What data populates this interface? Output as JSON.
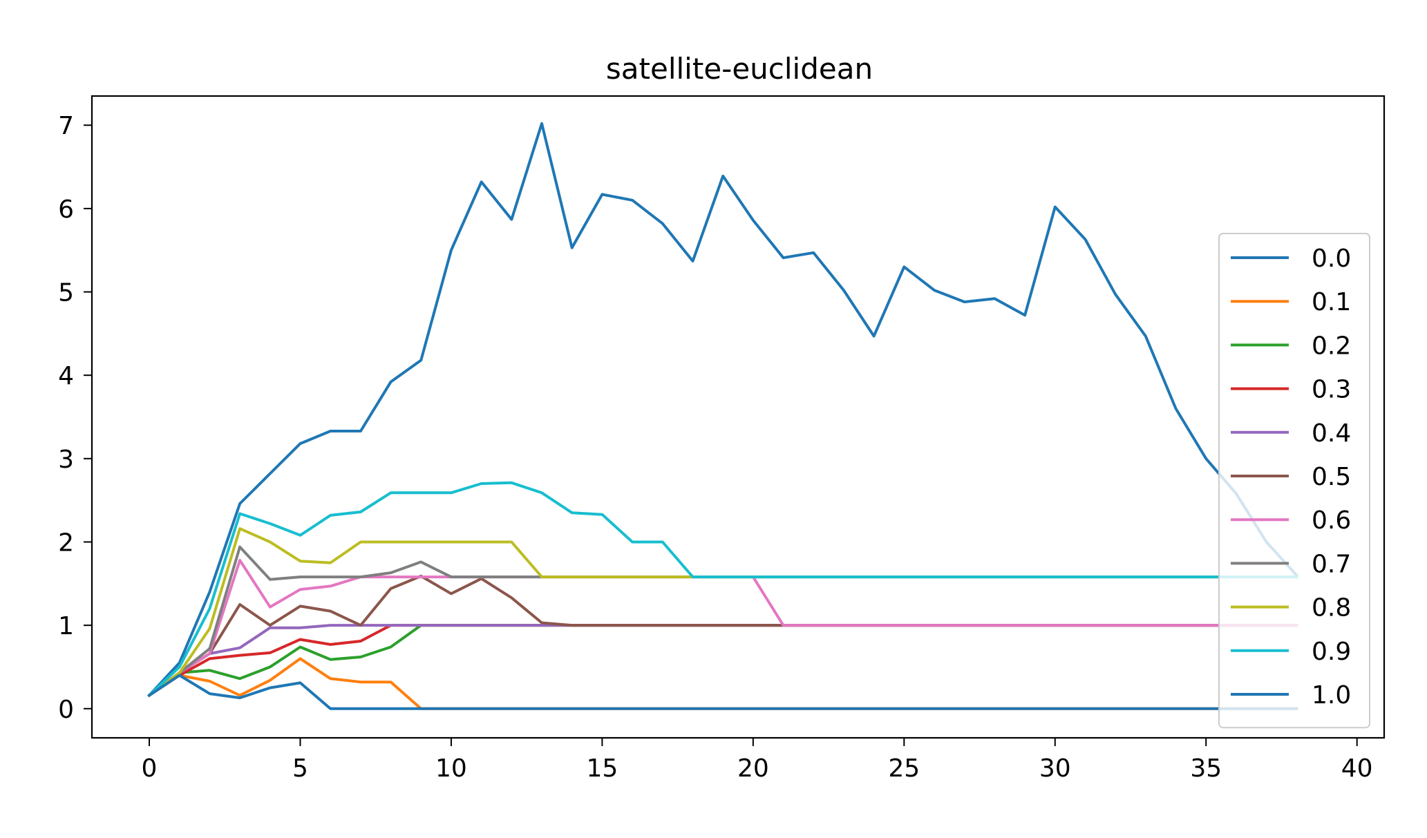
{
  "chart_data": {
    "type": "line",
    "title": "satellite-euclidean",
    "xlabel": "",
    "ylabel": "",
    "xlim": [
      -1.9,
      40.9
    ],
    "ylim": [
      -0.35,
      7.35
    ],
    "xticks": [
      0,
      5,
      10,
      15,
      20,
      25,
      30,
      35,
      40
    ],
    "yticks": [
      0,
      1,
      2,
      3,
      4,
      5,
      6,
      7
    ],
    "grid": false,
    "legend_position": "center-right",
    "x": [
      0,
      1,
      2,
      3,
      4,
      5,
      6,
      7,
      8,
      9,
      10,
      11,
      12,
      13,
      14,
      15,
      16,
      17,
      18,
      19,
      20,
      21,
      22,
      23,
      24,
      25,
      26,
      27,
      28,
      29,
      30,
      31,
      32,
      33,
      34,
      35,
      36,
      37,
      38
    ],
    "series": [
      {
        "name": "0.0",
        "color": "#1f77b4",
        "values": [
          0.16,
          0.55,
          1.4,
          2.46,
          2.82,
          3.18,
          3.33,
          3.33,
          3.92,
          4.18,
          5.5,
          6.32,
          5.87,
          7.02,
          5.53,
          6.17,
          6.1,
          5.82,
          5.37,
          6.39,
          5.86,
          5.41,
          5.47,
          5.02,
          4.47,
          5.3,
          5.02,
          4.88,
          4.92,
          4.72,
          6.02,
          5.63,
          4.97,
          4.47,
          3.6,
          3.0,
          2.58,
          2.0,
          1.6
        ]
      },
      {
        "name": "0.1",
        "color": "#ff7f0e",
        "values": [
          0.16,
          0.4,
          0.33,
          0.16,
          0.34,
          0.6,
          0.36,
          0.32,
          0.32,
          0,
          0,
          0,
          0,
          0,
          0,
          0,
          0,
          0,
          0,
          0,
          0,
          0,
          0,
          0,
          0,
          0,
          0,
          0,
          0,
          0,
          0,
          0,
          0,
          0,
          0,
          0,
          0,
          0,
          0
        ]
      },
      {
        "name": "0.2",
        "color": "#2ca02c",
        "values": [
          0.16,
          0.43,
          0.46,
          0.36,
          0.5,
          0.74,
          0.59,
          0.62,
          0.74,
          1,
          1,
          1,
          1,
          1,
          1,
          1,
          1,
          1,
          1,
          1,
          1,
          1,
          1,
          1,
          1,
          1,
          1,
          1,
          1,
          1,
          1,
          1,
          1,
          1,
          1,
          1,
          1,
          1,
          1
        ]
      },
      {
        "name": "0.3",
        "color": "#d62728",
        "values": [
          0.16,
          0.4,
          0.6,
          0.64,
          0.67,
          0.83,
          0.77,
          0.81,
          1,
          1,
          1,
          1,
          1,
          1,
          1,
          1,
          1,
          1,
          1,
          1,
          1,
          1,
          1,
          1,
          1,
          1,
          1,
          1,
          1,
          1,
          1,
          1,
          1,
          1,
          1,
          1,
          1,
          1,
          1
        ]
      },
      {
        "name": "0.4",
        "color": "#9467bd",
        "values": [
          0.16,
          0.43,
          0.66,
          0.73,
          0.97,
          0.97,
          1,
          1,
          1,
          1,
          1,
          1,
          1,
          1,
          1,
          1,
          1,
          1,
          1,
          1,
          1,
          1,
          1,
          1,
          1,
          1,
          1,
          1,
          1,
          1,
          1,
          1,
          1,
          1,
          1,
          1,
          1,
          1,
          1
        ]
      },
      {
        "name": "0.5",
        "color": "#8c564b",
        "values": [
          0.16,
          0.43,
          0.66,
          1.25,
          1.0,
          1.23,
          1.17,
          1.0,
          1.44,
          1.59,
          1.38,
          1.56,
          1.33,
          1.03,
          1.0,
          1.0,
          1.0,
          1.0,
          1.0,
          1.0,
          1.0,
          1.0,
          1,
          1,
          1,
          1,
          1,
          1,
          1,
          1,
          1,
          1,
          1,
          1,
          1,
          1,
          1,
          1,
          1
        ]
      },
      {
        "name": "0.6",
        "color": "#e377c2",
        "values": [
          0.16,
          0.43,
          0.66,
          1.78,
          1.22,
          1.43,
          1.47,
          1.58,
          1.58,
          1.58,
          1.58,
          1.58,
          1.58,
          1.58,
          1.58,
          1.58,
          1.58,
          1.58,
          1.58,
          1.58,
          1.58,
          1.0,
          1,
          1,
          1,
          1,
          1,
          1,
          1,
          1,
          1,
          1,
          1,
          1,
          1,
          1,
          1,
          1,
          1
        ]
      },
      {
        "name": "0.7",
        "color": "#7f7f7f",
        "values": [
          0.16,
          0.43,
          0.72,
          1.94,
          1.55,
          1.58,
          1.58,
          1.58,
          1.63,
          1.76,
          1.58,
          1.58,
          1.58,
          1.58,
          1.58,
          1.58,
          1.58,
          1.58,
          1.58,
          1.58,
          1.58,
          1.58,
          1.58,
          1.58,
          1.58,
          1.58,
          1.58,
          1.58,
          1.58,
          1.58,
          1.58,
          1.58,
          1.58,
          1.58,
          1.58,
          1.58,
          1.58,
          1.58,
          1.58
        ]
      },
      {
        "name": "0.8",
        "color": "#bcbd22",
        "values": [
          0.16,
          0.43,
          0.96,
          2.16,
          2.0,
          1.77,
          1.75,
          2.0,
          2.0,
          2.0,
          2.0,
          2.0,
          2.0,
          1.58,
          1.58,
          1.58,
          1.58,
          1.58,
          1.58,
          1.58,
          1.58,
          1.58,
          1.58,
          1.58,
          1.58,
          1.58,
          1.58,
          1.58,
          1.58,
          1.58,
          1.58,
          1.58,
          1.58,
          1.58,
          1.58,
          1.58,
          1.58,
          1.58,
          1.58
        ]
      },
      {
        "name": "0.9",
        "color": "#17becf",
        "values": [
          0.16,
          0.5,
          1.2,
          2.34,
          2.22,
          2.08,
          2.32,
          2.36,
          2.59,
          2.59,
          2.59,
          2.7,
          2.71,
          2.59,
          2.35,
          2.33,
          2.0,
          2.0,
          1.58,
          1.58,
          1.58,
          1.58,
          1.58,
          1.58,
          1.58,
          1.58,
          1.58,
          1.58,
          1.58,
          1.58,
          1.58,
          1.58,
          1.58,
          1.58,
          1.58,
          1.58,
          1.58,
          1.58,
          1.58
        ]
      },
      {
        "name": "1.0",
        "color": "#1f77b4",
        "values": [
          0.16,
          0.4,
          0.18,
          0.13,
          0.25,
          0.31,
          0,
          0,
          0,
          0,
          0,
          0,
          0,
          0,
          0,
          0,
          0,
          0,
          0,
          0,
          0,
          0,
          0,
          0,
          0,
          0,
          0,
          0,
          0,
          0,
          0,
          0,
          0,
          0,
          0,
          0,
          0,
          0,
          0
        ]
      }
    ]
  }
}
